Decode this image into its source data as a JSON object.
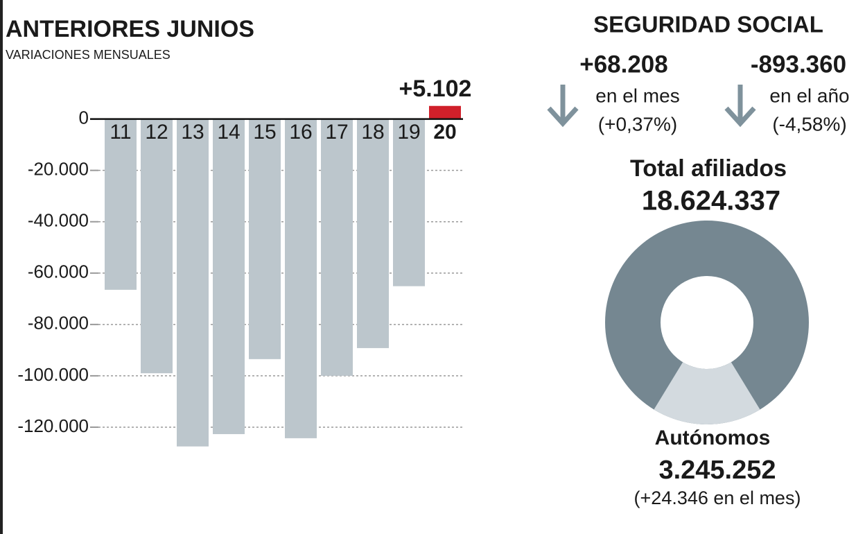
{
  "chart_data": [
    {
      "type": "bar",
      "title": "ANTERIORES  JUNIOS",
      "subtitle": "VARIACIONES MENSUALES",
      "categories": [
        "11",
        "12",
        "13",
        "14",
        "15",
        "16",
        "17",
        "18",
        "19",
        "20"
      ],
      "values": [
        -66500,
        -99000,
        -127500,
        -122700,
        -93500,
        -124300,
        -100000,
        -89200,
        -65100,
        5102
      ],
      "value_labels": [
        null,
        null,
        null,
        null,
        null,
        null,
        null,
        null,
        null,
        "+5.102"
      ],
      "colors": [
        "#bcc6cc",
        "#bcc6cc",
        "#bcc6cc",
        "#bcc6cc",
        "#bcc6cc",
        "#bcc6cc",
        "#bcc6cc",
        "#bcc6cc",
        "#bcc6cc",
        "#d0202a"
      ],
      "ylim": [
        -130000,
        8000
      ],
      "yticks": [
        0,
        {
          "value": -20000,
          "label": "-20.000"
        },
        {
          "value": -40000,
          "label": "-40.000"
        },
        {
          "value": -60000,
          "label": "-60.000"
        },
        {
          "value": -80000,
          "label": "-80.000"
        },
        {
          "value": -100000,
          "label": "-100.000"
        },
        {
          "value": -120000,
          "label": "-120.000"
        }
      ],
      "grid": true
    },
    {
      "type": "donut",
      "categories": [
        "Total afiliados",
        "Autónomos"
      ],
      "values": [
        18624337,
        3245252
      ],
      "value_labels": [
        "18.624.337",
        "3.245.252"
      ],
      "colors": [
        "#758791",
        "#d3dadf"
      ],
      "annotation": "(+24.346 en el mes)"
    }
  ],
  "seguridad_social": {
    "title": "SEGURIDAD SOCIAL",
    "stats": [
      {
        "value": "+68.208",
        "label": "en el mes",
        "change": "(+0,37%)"
      },
      {
        "value": "-893.360",
        "label": "en el año",
        "change": "(-4,58%)"
      }
    ]
  }
}
